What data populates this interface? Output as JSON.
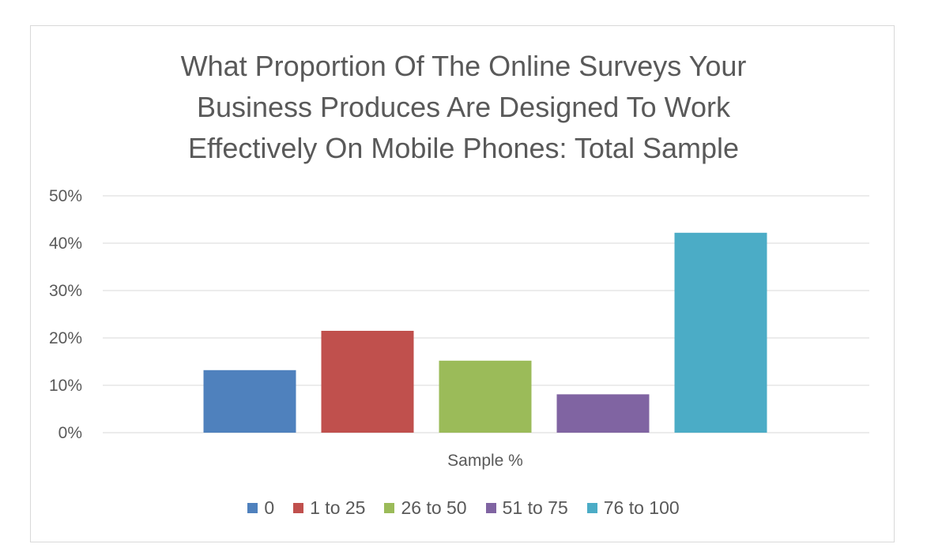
{
  "chart_data": {
    "type": "bar",
    "title_lines": [
      "What Proportion Of The Online Surveys Your",
      "Business Produces Are Designed To Work",
      "Effectively On Mobile Phones: Total Sample"
    ],
    "xlabel": "Sample %",
    "ylabel": "",
    "ylim": [
      0,
      50
    ],
    "yticks": [
      "0%",
      "10%",
      "20%",
      "30%",
      "40%",
      "50%"
    ],
    "grid": true,
    "legend_position": "bottom",
    "series": [
      {
        "name": "0",
        "value": 13.2,
        "color": "#4F81BD"
      },
      {
        "name": "1 to 25",
        "value": 21.5,
        "color": "#C0504D"
      },
      {
        "name": "26 to 50",
        "value": 15.2,
        "color": "#9BBB59"
      },
      {
        "name": "51 to 75",
        "value": 8.1,
        "color": "#8064A2"
      },
      {
        "name": "76 to 100",
        "value": 42.2,
        "color": "#4BACC6"
      }
    ]
  }
}
